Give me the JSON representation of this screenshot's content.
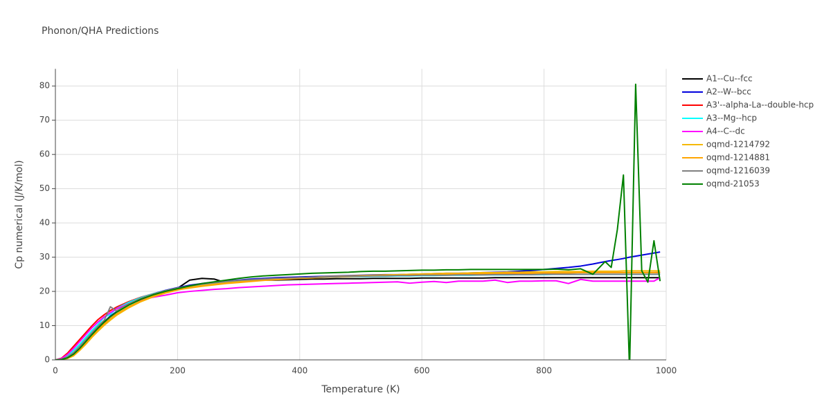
{
  "chart_data": {
    "type": "line",
    "title": "Phonon/QHA Predictions",
    "x_label": "Temperature (K)",
    "y_label": "Cp numerical (J/K/mol)",
    "xlim": [
      0,
      1000
    ],
    "xticks": [
      0,
      200,
      400,
      600,
      800,
      1000
    ],
    "ylim": [
      0,
      85
    ],
    "yticks": [
      0,
      10,
      20,
      30,
      40,
      50,
      60,
      70,
      80
    ],
    "grid": true,
    "legend": "right",
    "x": [
      0,
      10,
      20,
      30,
      40,
      50,
      60,
      70,
      80,
      90,
      100,
      120,
      140,
      160,
      180,
      200,
      220,
      240,
      260,
      280,
      300,
      320,
      340,
      360,
      380,
      400,
      420,
      440,
      460,
      480,
      500,
      520,
      540,
      560,
      580,
      600,
      620,
      640,
      660,
      680,
      700,
      720,
      740,
      760,
      780,
      800,
      820,
      840,
      860,
      880,
      900,
      910,
      920,
      930,
      940,
      950,
      960,
      970,
      980,
      990
    ],
    "series": [
      {
        "name": "A1--Cu--fcc",
        "color": "#000000",
        "values": [
          0,
          0.1,
          0.5,
          1.5,
          3.2,
          5.2,
          7.3,
          9.2,
          11,
          12.6,
          14,
          16.2,
          17.8,
          19.1,
          20.1,
          20.9,
          23.3,
          23.8,
          23.6,
          22.5,
          23.0,
          23.2,
          23.3,
          23.3,
          23.4,
          23.5,
          23.6,
          23.6,
          23.7,
          23.7,
          23.7,
          23.8,
          23.8,
          23.8,
          23.8,
          23.9,
          23.9,
          23.9,
          23.9,
          23.9,
          23.9,
          24,
          24,
          24,
          24,
          24,
          24,
          24,
          24,
          24,
          24,
          24,
          24,
          24,
          24,
          24,
          24,
          24,
          24,
          24
        ]
      },
      {
        "name": "A2--W--bcc",
        "color": "#0000dd",
        "values": [
          0,
          0.1,
          0.6,
          1.7,
          3.4,
          5.4,
          7.5,
          9.4,
          11.2,
          12.8,
          14.1,
          16.3,
          18,
          19.3,
          20.3,
          21.1,
          21.8,
          22.3,
          22.7,
          23,
          23.3,
          23.6,
          23.8,
          24,
          24.1,
          24.2,
          24.3,
          24.4,
          24.5,
          24.6,
          24.7,
          24.8,
          24.9,
          24.9,
          25,
          25.1,
          25.2,
          25.3,
          25.3,
          25.4,
          25.5,
          25.6,
          25.7,
          25.9,
          26.1,
          26.4,
          26.7,
          27,
          27.4,
          28,
          28.7,
          29,
          29.3,
          29.6,
          30,
          30.3,
          30.6,
          30.9,
          31.2,
          31.5
        ]
      },
      {
        "name": "A3'--alpha-La--double-hcp",
        "color": "#ff0000",
        "values": [
          0,
          0.5,
          2,
          4,
          6,
          8,
          10,
          11.8,
          13.2,
          14.4,
          15.4,
          17,
          18.3,
          19.3,
          20.1,
          20.8,
          21.4,
          21.9,
          22.3,
          22.7,
          23,
          23.3,
          23.5,
          23.7,
          23.9,
          24,
          24.1,
          24.2,
          24.3,
          24.4,
          24.5,
          24.6,
          24.7,
          24.8,
          24.8,
          24.9,
          25,
          25,
          25.1,
          25.1,
          25.2,
          25.2,
          25.3,
          25.3,
          25.3,
          25.4,
          25.4,
          25.4,
          25.5,
          25.5,
          25.5,
          25.5,
          25.5,
          25.5,
          25.5,
          25.5,
          25.5,
          25.5,
          25.5,
          25.5
        ]
      },
      {
        "name": "A3--Mg--hcp",
        "color": "#00ffff",
        "values": [
          0,
          0.3,
          1.3,
          2.8,
          4.6,
          6.6,
          8.6,
          10.4,
          12.5,
          13.3,
          15,
          16.8,
          18.2,
          19.3,
          20.2,
          20.9,
          21.5,
          22,
          22.4,
          22.8,
          23.1,
          23.3,
          23.5,
          23.7,
          23.8,
          23.9,
          24,
          24.1,
          24.2,
          24.3,
          24.3,
          24.4,
          24.4,
          24.5,
          24.5,
          24.6,
          24.6,
          24.7,
          24.7,
          24.7,
          24.8,
          24.8,
          24.8,
          24.9,
          24.9,
          24.9,
          25,
          25,
          25,
          25,
          25,
          25,
          25,
          25,
          25,
          25,
          25,
          25,
          25,
          25
        ]
      },
      {
        "name": "A4--C--dc",
        "color": "#ff00ff",
        "values": [
          0,
          0.4,
          1.6,
          3.4,
          5.4,
          7.4,
          9.4,
          11.1,
          12.6,
          13.8,
          14.9,
          16.4,
          17.5,
          18.3,
          18.9,
          19.6,
          20,
          20.3,
          20.6,
          20.8,
          21.1,
          21.3,
          21.5,
          21.7,
          21.9,
          22,
          22.1,
          22.2,
          22.3,
          22.4,
          22.5,
          22.6,
          22.7,
          22.8,
          22.4,
          22.7,
          22.9,
          22.6,
          23,
          23,
          23,
          23.3,
          22.6,
          23,
          23,
          23.1,
          23.1,
          22.3,
          23.5,
          23,
          23,
          23,
          23,
          23,
          23,
          23,
          23,
          23,
          23,
          24
        ]
      },
      {
        "name": "oqmd-1214792",
        "color": "#f5b800",
        "values": [
          0,
          0.1,
          0.4,
          1.2,
          2.8,
          4.6,
          6.6,
          8.4,
          10.1,
          11.6,
          13,
          15.2,
          17,
          18.4,
          19.5,
          20.4,
          21.2,
          21.7,
          22.1,
          22.5,
          22.8,
          23.1,
          23.4,
          23.6,
          23.8,
          24,
          24.1,
          24.3,
          24.4,
          24.5,
          24.6,
          24.7,
          24.8,
          24.9,
          25,
          25.1,
          25.2,
          25.3,
          25.3,
          25.4,
          25.5,
          25.5,
          25.6,
          25.6,
          25.7,
          25.7,
          25.8,
          25.8,
          25.8,
          25.9,
          25.9,
          25.9,
          25.9,
          26,
          26,
          26,
          26,
          26,
          26,
          26
        ]
      },
      {
        "name": "oqmd-1214881",
        "color": "#ffa500",
        "values": [
          0,
          0.1,
          0.5,
          1.4,
          3,
          4.9,
          6.9,
          8.8,
          10.5,
          12,
          13.4,
          15.5,
          17.2,
          18.6,
          19.7,
          20.5,
          21,
          21.5,
          21.9,
          22.3,
          22.6,
          22.9,
          23.2,
          23.4,
          23.6,
          23.8,
          23.9,
          24.1,
          24.2,
          24.3,
          24.4,
          24.5,
          24.6,
          24.7,
          24.8,
          24.9,
          25,
          25,
          25.1,
          25.1,
          25.2,
          25.2,
          25.3,
          25.3,
          25.3,
          25.4,
          25.4,
          25.4,
          25.5,
          25.5,
          25.5,
          25.5,
          25.5,
          25.5,
          25.5,
          25.5,
          25.5,
          25.5,
          25.5,
          25.6
        ]
      },
      {
        "name": "oqmd-1216039",
        "color": "#808080",
        "values": [
          0,
          0.2,
          0.9,
          2.2,
          4,
          6,
          8,
          9.9,
          11.6,
          15.5,
          14.3,
          16.4,
          18,
          19.2,
          20.2,
          21,
          21.6,
          22.1,
          22.5,
          22.9,
          23.2,
          23.4,
          23.6,
          23.8,
          23.9,
          24,
          24.1,
          24.2,
          24.3,
          24.4,
          24.4,
          24.5,
          24.5,
          24.6,
          24.6,
          24.7,
          24.7,
          24.7,
          24.8,
          24.8,
          24.8,
          24.9,
          24.9,
          24.9,
          24.9,
          25,
          25,
          25,
          25,
          25,
          25,
          25,
          25,
          25,
          25,
          25,
          25,
          25,
          25,
          25
        ]
      },
      {
        "name": "oqmd-21053",
        "color": "#008000",
        "values": [
          0,
          0.1,
          0.6,
          1.7,
          3.4,
          5.4,
          7.4,
          9.3,
          11.1,
          12.6,
          13.9,
          16,
          17.7,
          19,
          20,
          20.8,
          21.6,
          22.3,
          22.8,
          23.3,
          23.8,
          24.2,
          24.5,
          24.7,
          24.9,
          25.1,
          25.3,
          25.4,
          25.5,
          25.6,
          25.8,
          25.9,
          25.9,
          26,
          26.1,
          26.2,
          26.2,
          26.3,
          26.3,
          26.4,
          26.4,
          26.4,
          26.4,
          26.4,
          26.4,
          26.4,
          26.5,
          26.3,
          26.6,
          25,
          28.7,
          27,
          38,
          54,
          -3,
          80.5,
          26,
          22.7,
          34.8,
          23
        ]
      }
    ]
  }
}
